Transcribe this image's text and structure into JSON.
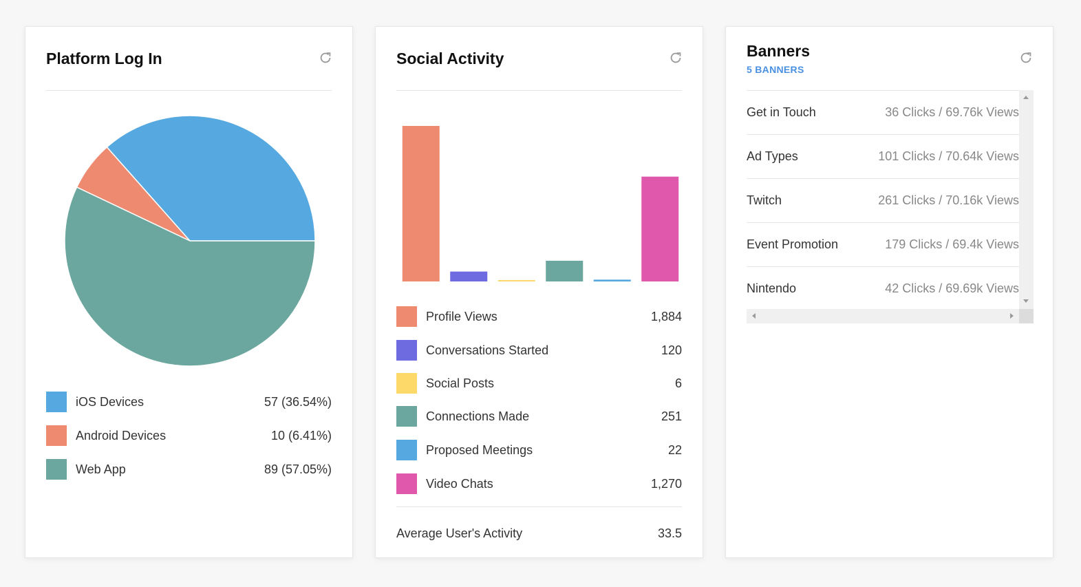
{
  "colors": {
    "ios": "#56a9e0",
    "android": "#ee8a70",
    "web_app": "#6ba79e",
    "profile_views": "#ee8a70",
    "conversations": "#6e6ae0",
    "social_posts": "#fdd96a",
    "connections": "#6ba79e",
    "meetings": "#56a9e0",
    "video_chats": "#e058ab",
    "banners_accent": "#4a90e2"
  },
  "platform": {
    "title": "Platform Log In",
    "refresh_icon": "refresh-icon",
    "legend": [
      {
        "label": "iOS Devices",
        "value": "57 (36.54%)"
      },
      {
        "label": "Android Devices",
        "value": "10 (6.41%)"
      },
      {
        "label": "Web App",
        "value": "89 (57.05%)"
      }
    ]
  },
  "social": {
    "title": "Social Activity",
    "refresh_icon": "refresh-icon",
    "legend": [
      {
        "label": "Profile Views",
        "value": "1,884"
      },
      {
        "label": "Conversations Started",
        "value": "120"
      },
      {
        "label": "Social Posts",
        "value": "6"
      },
      {
        "label": "Connections Made",
        "value": "251"
      },
      {
        "label": "Proposed Meetings",
        "value": "22"
      },
      {
        "label": "Video Chats",
        "value": "1,270"
      }
    ],
    "average_label": "Average User's Activity",
    "average_value": "33.5"
  },
  "banners": {
    "title": "Banners",
    "subtitle": "5 BANNERS",
    "refresh_icon": "refresh-icon",
    "items": [
      {
        "name": "Get in Touch",
        "stats": "36 Clicks / 69.76k Views"
      },
      {
        "name": "Ad Types",
        "stats": "101 Clicks / 70.64k Views"
      },
      {
        "name": "Twitch",
        "stats": "261 Clicks / 70.16k Views"
      },
      {
        "name": "Event Promotion",
        "stats": "179 Clicks / 69.4k Views"
      },
      {
        "name": "Nintendo",
        "stats": "42 Clicks / 69.69k Views"
      }
    ]
  },
  "chart_data": [
    {
      "type": "pie",
      "title": "Platform Log In",
      "categories": [
        "iOS Devices",
        "Android Devices",
        "Web App"
      ],
      "values": [
        57,
        10,
        89
      ],
      "percentages": [
        36.54,
        6.41,
        57.05
      ],
      "colors": [
        "#56a9e0",
        "#ee8a70",
        "#6ba79e"
      ]
    },
    {
      "type": "bar",
      "title": "Social Activity",
      "categories": [
        "Profile Views",
        "Conversations Started",
        "Social Posts",
        "Connections Made",
        "Proposed Meetings",
        "Video Chats"
      ],
      "values": [
        1884,
        120,
        6,
        251,
        22,
        1270
      ],
      "colors": [
        "#ee8a70",
        "#6e6ae0",
        "#fdd96a",
        "#6ba79e",
        "#56a9e0",
        "#e058ab"
      ],
      "ylim": [
        0,
        1884
      ],
      "grid": false,
      "axes_visible": false
    }
  ]
}
